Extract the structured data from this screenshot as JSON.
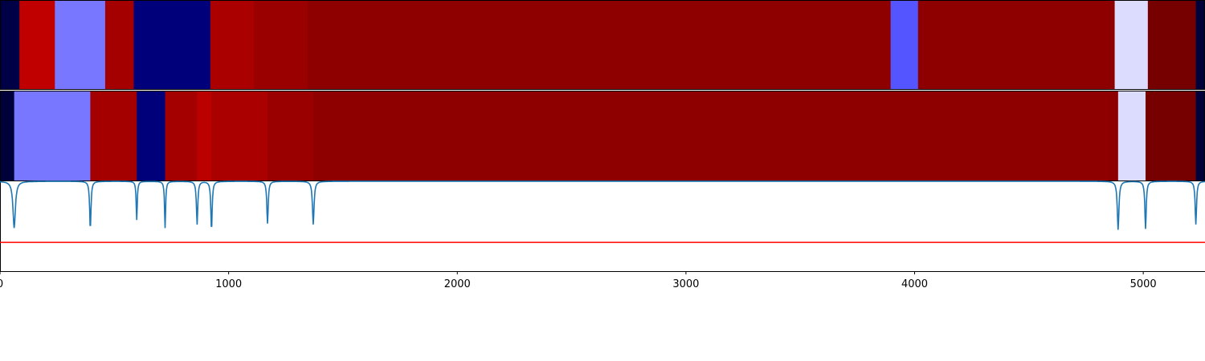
{
  "chart_data": [
    {
      "type": "heatmap",
      "name": "segment-band-top",
      "x_domain": [
        0,
        5270
      ],
      "segments": [
        {
          "start": 0,
          "end": 85,
          "color": "#000047"
        },
        {
          "start": 85,
          "end": 240,
          "color": "#c00000"
        },
        {
          "start": 240,
          "end": 460,
          "color": "#7777ff"
        },
        {
          "start": 460,
          "end": 585,
          "color": "#a50000"
        },
        {
          "start": 585,
          "end": 920,
          "color": "#00007a"
        },
        {
          "start": 920,
          "end": 1110,
          "color": "#aa0000"
        },
        {
          "start": 1110,
          "end": 1345,
          "color": "#9b0000"
        },
        {
          "start": 1345,
          "end": 3895,
          "color": "#8e0000"
        },
        {
          "start": 3895,
          "end": 4015,
          "color": "#5555ff"
        },
        {
          "start": 4015,
          "end": 4875,
          "color": "#8e0000"
        },
        {
          "start": 4875,
          "end": 5020,
          "color": "#dcdcff"
        },
        {
          "start": 5020,
          "end": 5230,
          "color": "#760000"
        },
        {
          "start": 5230,
          "end": 5270,
          "color": "#00003a"
        }
      ]
    },
    {
      "type": "heatmap",
      "name": "segment-band-bottom",
      "x_domain": [
        0,
        5270
      ],
      "segments": [
        {
          "start": 0,
          "end": 62,
          "color": "#00003a"
        },
        {
          "start": 62,
          "end": 395,
          "color": "#7777ff"
        },
        {
          "start": 395,
          "end": 598,
          "color": "#a50000"
        },
        {
          "start": 598,
          "end": 722,
          "color": "#00007a"
        },
        {
          "start": 722,
          "end": 862,
          "color": "#a50000"
        },
        {
          "start": 862,
          "end": 925,
          "color": "#bb0000"
        },
        {
          "start": 925,
          "end": 1170,
          "color": "#aa0000"
        },
        {
          "start": 1170,
          "end": 1370,
          "color": "#9b0000"
        },
        {
          "start": 1370,
          "end": 4890,
          "color": "#8e0000"
        },
        {
          "start": 4890,
          "end": 5010,
          "color": "#dcdcff"
        },
        {
          "start": 5010,
          "end": 5230,
          "color": "#760000"
        },
        {
          "start": 5230,
          "end": 5270,
          "color": "#00003a"
        }
      ]
    },
    {
      "type": "line",
      "name": "score-trace",
      "xlim": [
        0,
        5270
      ],
      "ylim": [
        0,
        1
      ],
      "grid": false,
      "xticks": [
        0,
        1000,
        2000,
        3000,
        4000,
        5000
      ],
      "xtick_labels": [
        "0",
        "1000",
        "2000",
        "3000",
        "4000",
        "5000"
      ],
      "threshold": 0.32,
      "colors": {
        "series": "#1f77b4",
        "threshold": "#ff0000"
      },
      "dips": [
        {
          "x": 62,
          "depth": 0.52,
          "width": 18
        },
        {
          "x": 395,
          "depth": 0.53,
          "width": 10
        },
        {
          "x": 598,
          "depth": 0.43,
          "width": 8
        },
        {
          "x": 722,
          "depth": 0.52,
          "width": 8
        },
        {
          "x": 862,
          "depth": 0.48,
          "width": 10
        },
        {
          "x": 925,
          "depth": 0.54,
          "width": 10
        },
        {
          "x": 1170,
          "depth": 0.47,
          "width": 10
        },
        {
          "x": 1370,
          "depth": 0.48,
          "width": 12
        },
        {
          "x": 4890,
          "depth": 0.54,
          "width": 12
        },
        {
          "x": 5010,
          "depth": 0.53,
          "width": 10
        },
        {
          "x": 5230,
          "depth": 0.48,
          "width": 10
        }
      ]
    }
  ]
}
